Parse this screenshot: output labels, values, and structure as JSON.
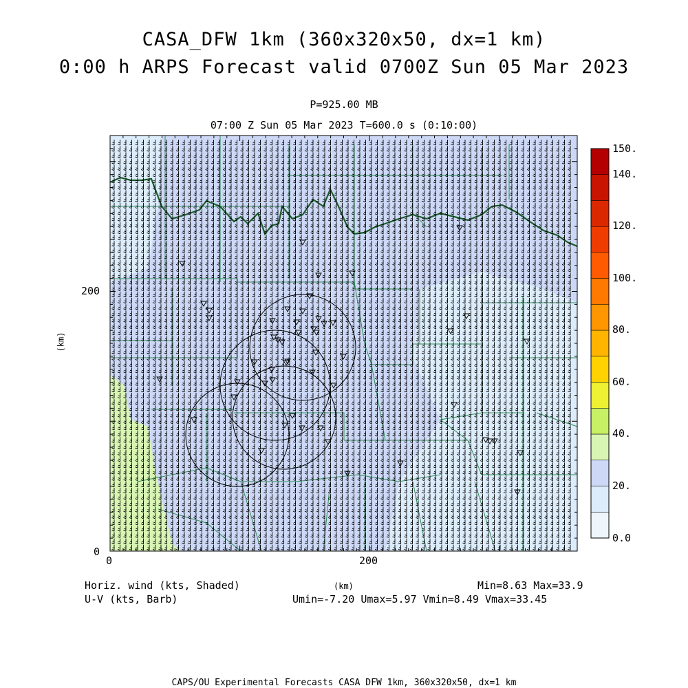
{
  "title": {
    "line1": "CASA_DFW 1km (360x320x50, dx=1 km)",
    "line2": "0:00 h ARPS Forecast valid 0700Z Sun 05 Mar 2023"
  },
  "subtitle": {
    "level": "P=925.00 MB",
    "time": "07:00 Z Sun 05 Mar 2023    T=600.0 s (0:10:00)"
  },
  "axes": {
    "x_ticks": [
      "0",
      "200"
    ],
    "y_ticks": [
      "0",
      "200"
    ],
    "x_label": "(km)",
    "y_label": "(km)"
  },
  "colorbar": {
    "labels": [
      "150.",
      "140.",
      "120.",
      "100.",
      "80.",
      "60.",
      "40.",
      "20.",
      "0.0"
    ],
    "colors": [
      "#b40000",
      "#c81400",
      "#dc2800",
      "#f03c00",
      "#ff5a00",
      "#ff7800",
      "#ff9600",
      "#ffb400",
      "#ffd200",
      "#eef032",
      "#c8f064",
      "#d8f5b4",
      "#ccd8f5",
      "#dcecfa",
      "#eef6fc"
    ]
  },
  "legend": {
    "shaded": "Horiz. wind (kts, Shaded)",
    "barb": "U-V (kts, Barb)",
    "minmax": "Min=8.63 Max=33.9",
    "uv": "Umin=-7.20 Umax=5.97 Vmin=8.49 Vmax=33.45",
    "xunit": "(km)"
  },
  "footer": "CAPS/OU Experimental Forecasts  CASA DFW 1km, 360x320x50, dx=1 km",
  "field": {
    "domain_km": [
      360,
      320
    ],
    "background_color": "#ccd8f5",
    "light_color": "#dcecfa",
    "green_color": "#d8f5b4",
    "boundary_color": "#2e8b57",
    "state_line_color": "#1a5c2a",
    "barb_color": "#000000"
  }
}
